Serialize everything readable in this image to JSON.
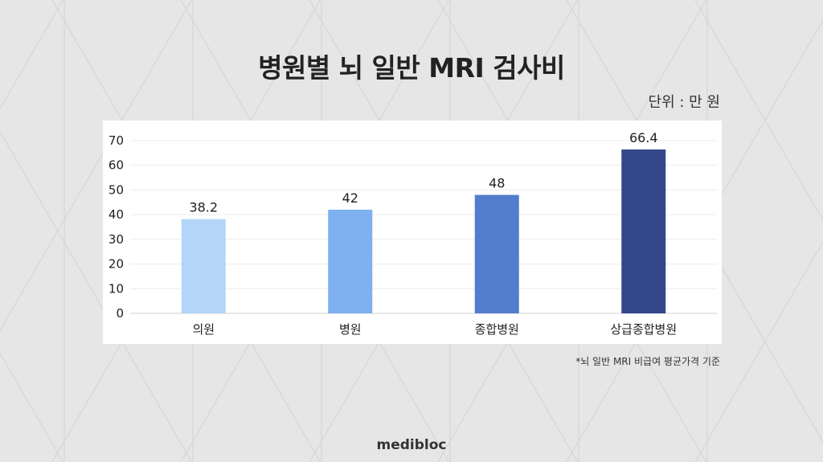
{
  "title": "병원별 뇌 일반 MRI 검사비",
  "unit_label": "단위 : 만 원",
  "footnote": "*뇌 일반 MRI 비급여 평균가격 기준",
  "brand": "medibloc",
  "colors": {
    "background": "#e6e6e6",
    "panel": "#ffffff",
    "bars": [
      "#b3d5f7",
      "#7fb0ef",
      "#527dcc",
      "#34478a"
    ]
  },
  "chart_data": {
    "type": "bar",
    "title": "병원별 뇌 일반 MRI 검사비",
    "xlabel": "",
    "ylabel": "",
    "categories": [
      "의원",
      "병원",
      "종합병원",
      "상급종합병원"
    ],
    "values": [
      38.2,
      42,
      48,
      66.4
    ],
    "data_labels": [
      "38.2",
      "42",
      "48",
      "66.4"
    ],
    "ylim": [
      0,
      70
    ],
    "yticks": [
      0,
      10,
      20,
      30,
      40,
      50,
      60,
      70
    ],
    "grid": true,
    "legend": "none"
  }
}
